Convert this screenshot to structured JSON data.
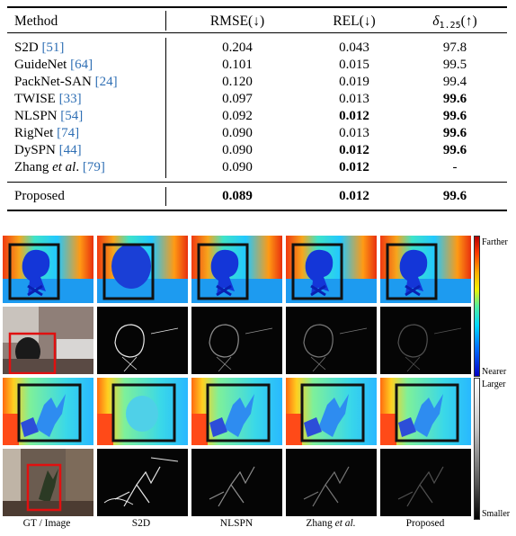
{
  "table": {
    "headers": {
      "method": "Method",
      "rmse": "RMSE(↓)",
      "rel": "REL(↓)",
      "delta_symbol": "δ",
      "delta_sub": "1.25",
      "delta_arrow": "(↑)"
    },
    "rows": [
      {
        "name": "S2D",
        "ref": "[51]",
        "rmse": "0.204",
        "rel": "0.043",
        "delta": "97.8"
      },
      {
        "name": "GuideNet",
        "ref": "[64]",
        "rmse": "0.101",
        "rel": "0.015",
        "delta": "99.5"
      },
      {
        "name": "PackNet-SAN",
        "ref": "[24]",
        "rmse": "0.120",
        "rel": "0.019",
        "delta": "99.4"
      },
      {
        "name": "TWISE",
        "ref": "[33]",
        "rmse": "0.097",
        "rel": "0.013",
        "delta": "99.6"
      },
      {
        "name": "NLSPN",
        "ref": "[54]",
        "rmse": "0.092",
        "rel": "0.012",
        "delta": "99.6"
      },
      {
        "name": "RigNet",
        "ref": "[74]",
        "rmse": "0.090",
        "rel": "0.013",
        "delta": "99.6"
      },
      {
        "name": "DySPN",
        "ref": "[44]",
        "rmse": "0.090",
        "rel": "0.012",
        "delta": "99.6"
      },
      {
        "name": "Zhang",
        "name_italic": "et al",
        "name_suffix": ".",
        "ref": "[79]",
        "rmse": "0.090",
        "rel": "0.012",
        "delta": "-"
      }
    ],
    "proposed": {
      "name": "Proposed",
      "rmse": "0.089",
      "rel": "0.012",
      "delta": "99.6"
    }
  },
  "figure": {
    "columns": [
      "GT / Image",
      "S2D",
      "NLSPN",
      "Zhang",
      "Proposed"
    ],
    "zhang_italic": "et al.",
    "depth_bar": {
      "top": "Farther",
      "bottom": "Nearer"
    },
    "error_bar": {
      "top": "Larger",
      "bottom": "Smaller"
    }
  }
}
